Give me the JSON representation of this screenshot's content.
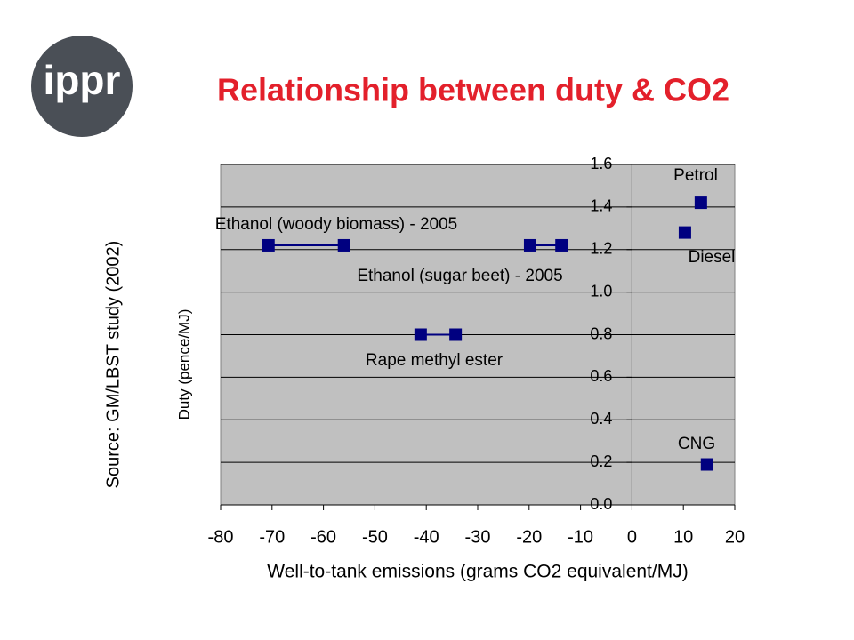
{
  "logo": "ippr",
  "chart_data": {
    "type": "scatter",
    "title": "Relationship between duty & CO2",
    "source": "Source: GM/LBST study (2002)",
    "xlabel": "Well-to-tank emissions (grams CO2 equivalent/MJ)",
    "ylabel": "Duty (pence/MJ)",
    "xlim": [
      -80,
      20
    ],
    "xticks": [
      -80,
      -70,
      -60,
      -50,
      -40,
      -30,
      -20,
      -10,
      0,
      10,
      20
    ],
    "ylim": [
      0,
      1.6
    ],
    "yticks": [
      {
        "value": 0,
        "label": "0.0"
      },
      0.2,
      0.4,
      0.6,
      0.8,
      {
        "value": 1,
        "label": "1.0"
      },
      1.2,
      1.4,
      1.6
    ],
    "grid": true,
    "series": [
      {
        "name": "Ethanol (woody biomass) - 2005",
        "color": "#000080",
        "x": [
          -70.7,
          -56
        ],
        "values": [
          1.22,
          1.22
        ]
      },
      {
        "name": "Ethanol (sugar beet) - 2005",
        "color": "#000080",
        "x": [
          -19.8,
          -13.7
        ],
        "values": [
          1.22,
          1.22
        ]
      },
      {
        "name": "Rape methyl ester",
        "color": "#000080",
        "x": [
          -41.1,
          -34.3
        ],
        "values": [
          0.8,
          0.8
        ]
      },
      {
        "name": "Petrol",
        "color": "#000080",
        "x": [
          13.4
        ],
        "values": [
          1.42
        ]
      },
      {
        "name": "Diesel",
        "color": "#000080",
        "x": [
          10.3
        ],
        "values": [
          1.28
        ]
      },
      {
        "name": "CNG",
        "color": "#000080",
        "x": [
          14.6
        ],
        "values": [
          0.19
        ]
      }
    ]
  }
}
